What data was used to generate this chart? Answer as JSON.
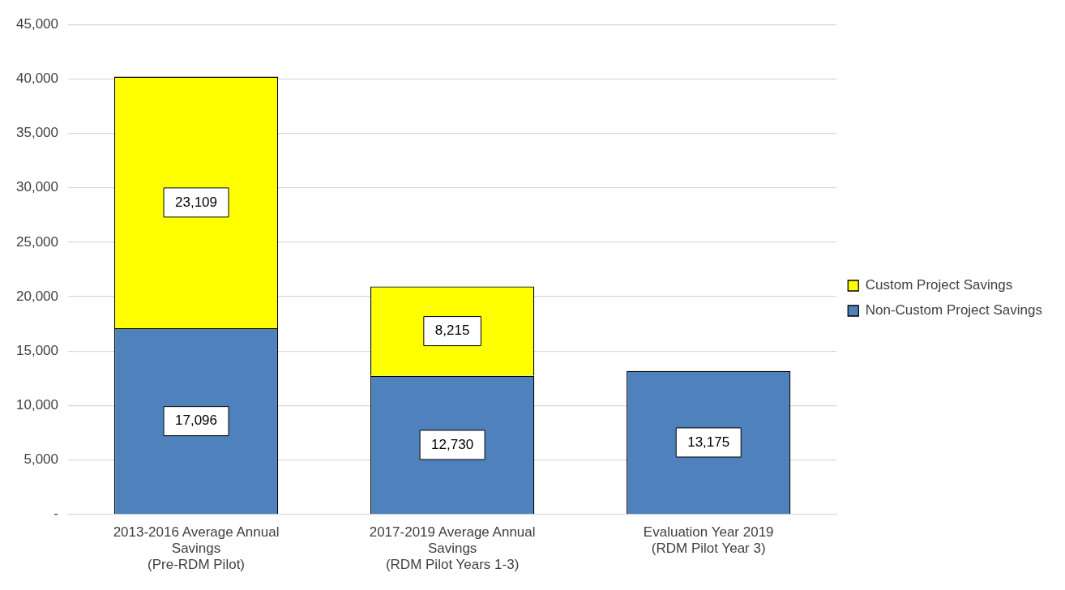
{
  "chart_data": {
    "type": "bar",
    "stacked": true,
    "categories": [
      "2013-2016 Average Annual\nSavings\n(Pre-RDM Pilot)",
      "2017-2019 Average Annual\nSavings\n(RDM Pilot Years 1-3)",
      "Evaluation Year 2019\n(RDM Pilot Year 3)"
    ],
    "series": [
      {
        "name": "Non-Custom Project Savings",
        "color": "#4f81bd",
        "values": [
          17096,
          12730,
          13175
        ],
        "value_labels": [
          "17,096",
          "12,730",
          "13,175"
        ]
      },
      {
        "name": "Custom Project Savings",
        "color": "#ffff00",
        "values": [
          23109,
          8215,
          null
        ],
        "value_labels": [
          "23,109",
          "8,215",
          null
        ]
      }
    ],
    "ylim": [
      0,
      45000
    ],
    "yticks": [
      {
        "value": 0,
        "label": "-"
      },
      {
        "value": 5000,
        "label": "5,000"
      },
      {
        "value": 10000,
        "label": "10,000"
      },
      {
        "value": 15000,
        "label": "15,000"
      },
      {
        "value": 20000,
        "label": "20,000"
      },
      {
        "value": 25000,
        "label": "25,000"
      },
      {
        "value": 30000,
        "label": "30,000"
      },
      {
        "value": 35000,
        "label": "35,000"
      },
      {
        "value": 40000,
        "label": "40,000"
      },
      {
        "value": 45000,
        "label": "45,000"
      }
    ],
    "grid": "y",
    "legend": "right"
  }
}
